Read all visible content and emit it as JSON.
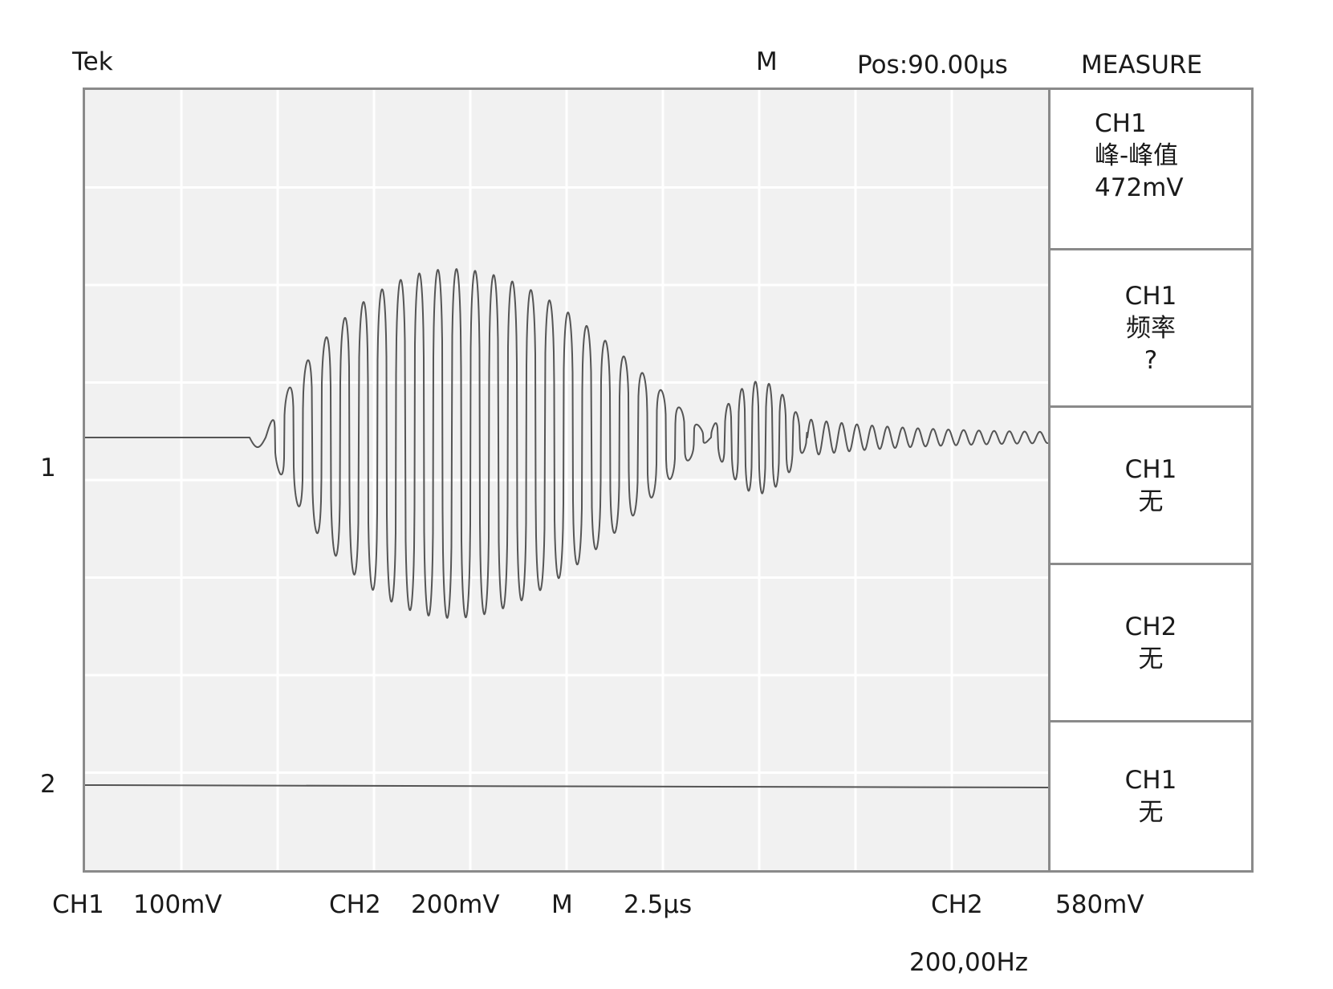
{
  "header": {
    "brand": "Tek",
    "mode": "M",
    "position": "Pos:90.00µs",
    "menu_title": "MEASURE"
  },
  "channel_markers": {
    "ch1": "1",
    "ch2": "2"
  },
  "measure_menu": [
    {
      "source": "CH1",
      "type": "峰-峰值",
      "value": "472mV"
    },
    {
      "source": "CH1",
      "type": "频率",
      "value": "?"
    },
    {
      "source": "CH1",
      "type": "无",
      "value": ""
    },
    {
      "source": "CH2",
      "type": "无",
      "value": ""
    },
    {
      "source": "CH1",
      "type": "无",
      "value": ""
    }
  ],
  "status_bar": {
    "ch1_label": "CH1",
    "ch1_scale": "100mV",
    "ch2_label": "CH2",
    "ch2_scale": "200mV",
    "time_label": "M",
    "time_scale": "2.5µs",
    "trigger_source": "CH2",
    "trigger_level": "580mV",
    "frequency": "200,00Hz"
  },
  "colors": {
    "screen_background": "#f1f1f1",
    "grid": "#ffffff",
    "trace": "#555555",
    "frame": "#8a8a8a"
  },
  "display": {
    "grid_divisions_x": 10,
    "grid_divisions_y": 8,
    "ch1_trace": "tone burst: flat baseline, then oscillation rising to about +2.2 div / -2.1 div, decaying, small second burst, ringing",
    "ch2_trace": "flat line"
  }
}
